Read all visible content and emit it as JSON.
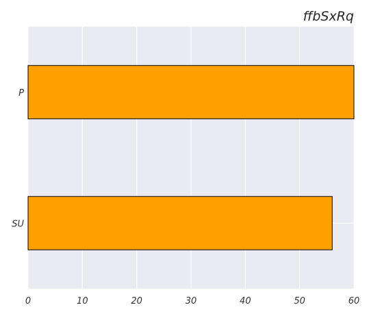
{
  "chart_data": {
    "type": "bar",
    "orientation": "horizontal",
    "title": "ffbSxRq",
    "categories": [
      "P",
      "SU"
    ],
    "values": [
      60,
      56
    ],
    "xlim": [
      0,
      60
    ],
    "xticks": [
      0,
      10,
      20,
      30,
      40,
      50,
      60
    ],
    "grid": true,
    "bar_color": "#ff9f00",
    "bar_edge_color": "#000000",
    "background_color": "#eaeaf2"
  }
}
